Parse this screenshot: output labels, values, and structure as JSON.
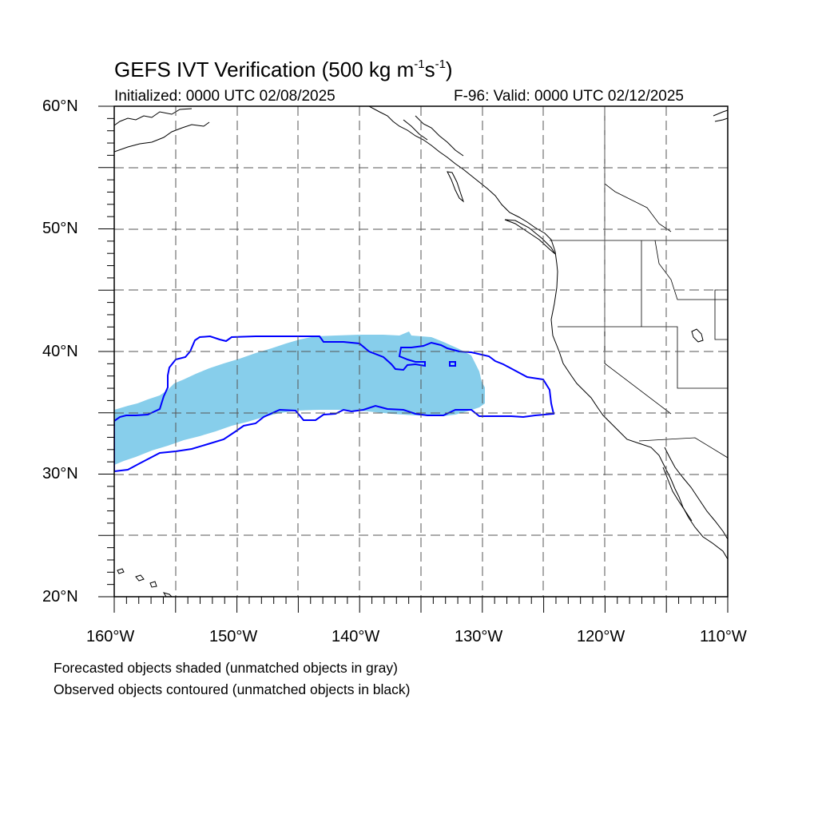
{
  "title": {
    "main": "GEFS IVT Verification (500 kg m",
    "sup1": "-1",
    "mid": "s",
    "sup2": "-1",
    "end": ")"
  },
  "initialized": "Initialized: 0000 UTC 02/08/2025",
  "valid": "F-96: Valid: 0000 UTC 02/12/2025",
  "lat_labels": [
    "60°N",
    "50°N",
    "40°N",
    "30°N",
    "20°N"
  ],
  "lon_labels": [
    "160°W",
    "150°W",
    "140°W",
    "130°W",
    "120°W",
    "110°W"
  ],
  "notes": [
    "Forecasted objects shaded (unmatched objects in gray)",
    "Observed objects contoured (unmatched objects in black)"
  ],
  "map": {
    "lat_range": [
      20,
      60
    ],
    "lon_range": [
      -160,
      -110
    ],
    "grid": "dashed every 5 degrees",
    "forecast_fill_color": "#87ceeb",
    "observed_contour_color": "#0000ff",
    "coastline_color": "#000000"
  }
}
